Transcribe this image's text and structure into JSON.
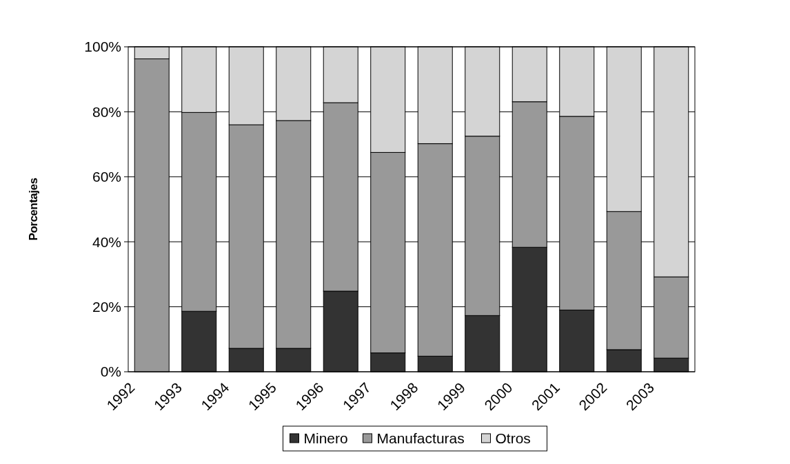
{
  "chart_data": {
    "type": "bar",
    "stacked": true,
    "ylabel": "Porcentajes",
    "categories": [
      "1992",
      "1993",
      "1994",
      "1995",
      "1996",
      "1997",
      "1998",
      "1999",
      "2000",
      "2001",
      "2002",
      "2003"
    ],
    "series": [
      {
        "name": "Minero",
        "color": "#333333",
        "values": [
          0,
          18.6,
          7.2,
          7.2,
          24.8,
          5.8,
          4.8,
          17.3,
          38.3,
          19,
          6.8,
          4.2
        ]
      },
      {
        "name": "Manufacturas",
        "color": "#999999",
        "values": [
          96.3,
          61.2,
          68.8,
          70.1,
          58,
          61.7,
          65.4,
          55.2,
          44.8,
          59.6,
          42.5,
          25
        ]
      },
      {
        "name": "Otros",
        "color": "#d4d4d4",
        "values": [
          3.7,
          20.2,
          24,
          22.7,
          17.2,
          32.5,
          29.8,
          27.5,
          16.9,
          21.4,
          50.7,
          70.8
        ]
      }
    ],
    "ylim": [
      0,
      100
    ],
    "yticks": [
      {
        "value": 0,
        "label": "0%"
      },
      {
        "value": 20,
        "label": "20%"
      },
      {
        "value": 40,
        "label": "40%"
      },
      {
        "value": 60,
        "label": "60%"
      },
      {
        "value": 80,
        "label": "80%"
      },
      {
        "value": 100,
        "label": "100%"
      }
    ],
    "grid": "y",
    "legend": "bottom"
  }
}
